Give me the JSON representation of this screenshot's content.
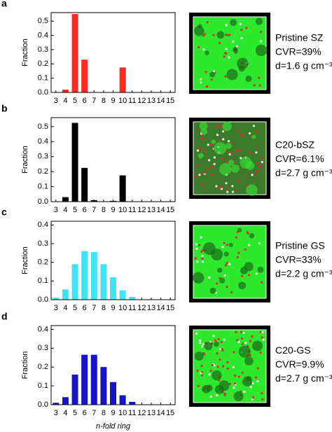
{
  "chart_data": [
    {
      "type": "bar",
      "panel_label": "a",
      "y_label": "Fraction",
      "color": "#ff2a1f",
      "x": [
        3,
        4,
        5,
        6,
        7,
        8,
        9,
        10,
        11,
        12,
        13,
        14,
        15
      ],
      "values": [
        0,
        0.02,
        0.55,
        0.23,
        0,
        0,
        0,
        0.175,
        0,
        0,
        0,
        0,
        0
      ],
      "xlim": [
        2.5,
        15.5
      ],
      "xticks": [
        3,
        4,
        5,
        6,
        7,
        8,
        9,
        10,
        11,
        12,
        13,
        14,
        15
      ],
      "ylim": [
        0,
        0.56
      ],
      "yticks": [
        {
          "value": 0,
          "label": "0.0"
        },
        0.1,
        0.2,
        0.3,
        0.4,
        0.5
      ],
      "annotations": [
        "Pristine SZ",
        "CVR=39%",
        "d=1.6 g cm⁻³"
      ]
    },
    {
      "type": "bar",
      "panel_label": "b",
      "y_label": "Fraction",
      "color": "#000000",
      "x": [
        3,
        4,
        5,
        6,
        7,
        8,
        9,
        10,
        11,
        12,
        13,
        14,
        15
      ],
      "values": [
        0,
        0.03,
        0.525,
        0.225,
        0.01,
        0,
        0.005,
        0.175,
        0,
        0,
        0,
        0,
        0
      ],
      "xlim": [
        2.5,
        15.5
      ],
      "xticks": [
        3,
        4,
        5,
        6,
        7,
        8,
        9,
        10,
        11,
        12,
        13,
        14,
        15
      ],
      "ylim": [
        0,
        0.56
      ],
      "yticks": [
        {
          "value": 0,
          "label": "0.0"
        },
        0.1,
        0.2,
        0.3,
        0.4,
        0.5
      ],
      "annotations": [
        "C20-bSZ",
        "CVR=6.1%",
        "d=2.7 g cm⁻³"
      ]
    },
    {
      "type": "bar",
      "panel_label": "c",
      "y_label": "Fraction",
      "color": "#3ee6f5",
      "x": [
        3,
        4,
        5,
        6,
        7,
        8,
        9,
        10,
        11,
        12,
        13,
        14,
        15
      ],
      "values": [
        0.01,
        0.055,
        0.19,
        0.26,
        0.255,
        0.19,
        0.12,
        0.05,
        0.015,
        0,
        0,
        0,
        0
      ],
      "xlim": [
        2.5,
        15.5
      ],
      "xticks": [
        3,
        4,
        5,
        6,
        7,
        8,
        9,
        10,
        11,
        12,
        13,
        14,
        15
      ],
      "ylim": [
        0,
        0.42
      ],
      "yticks": [
        {
          "value": 0,
          "label": "0.0"
        },
        0.1,
        0.2,
        0.3,
        0.4
      ],
      "annotations": [
        "Pristine GS",
        "CVR=33%",
        "d=2.2 g cm⁻³"
      ]
    },
    {
      "type": "bar",
      "panel_label": "d",
      "y_label": "Fraction",
      "x_label": "n-fold ring",
      "color": "#1414c8",
      "x": [
        3,
        4,
        5,
        6,
        7,
        8,
        9,
        10,
        11,
        12,
        13,
        14,
        15
      ],
      "values": [
        0.01,
        0.04,
        0.16,
        0.265,
        0.265,
        0.2,
        0.12,
        0.05,
        0.015,
        0,
        0,
        0,
        0
      ],
      "xlim": [
        2.5,
        15.5
      ],
      "xticks": [
        3,
        4,
        5,
        6,
        7,
        8,
        9,
        10,
        11,
        12,
        13,
        14,
        15
      ],
      "ylim": [
        0,
        0.42
      ],
      "yticks": [
        {
          "value": 0,
          "label": "0.0"
        },
        0.1,
        0.2,
        0.3,
        0.4
      ],
      "annotations": [
        "C20-GS",
        "CVR=9.9%",
        "d=2.7 g cm⁻³"
      ]
    }
  ]
}
